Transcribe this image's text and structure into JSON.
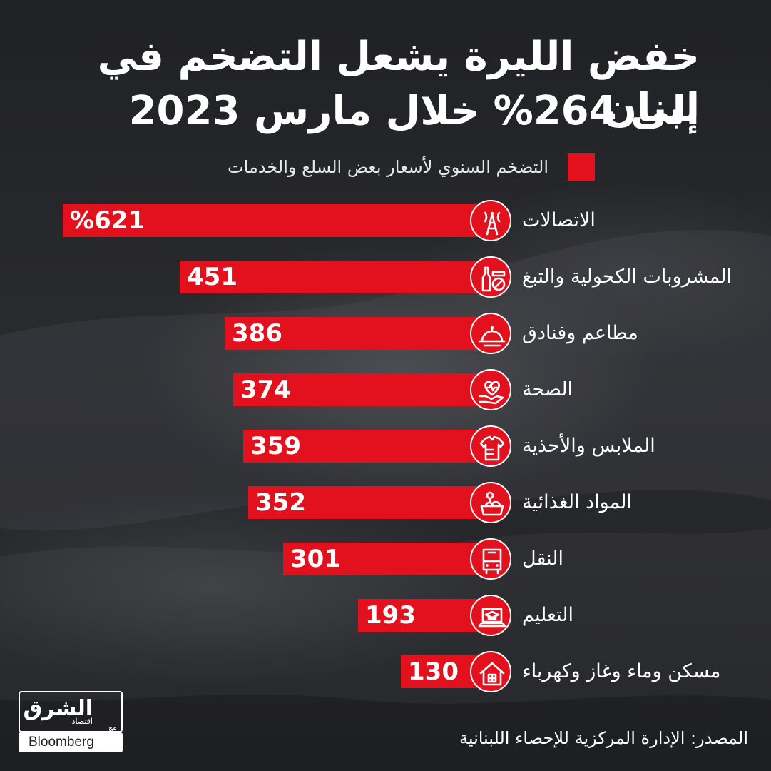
{
  "header": {
    "title_line1": "خفض الليرة يشعل التضخم في لبنان",
    "title_line2": "إلى 264% خلال مارس 2023"
  },
  "legend": {
    "label": "التضخم السنوي لأسعار بعض السلع والخدمات",
    "color": "#e3101d"
  },
  "chart_data": {
    "type": "bar",
    "orientation": "horizontal",
    "title": "خفض الليرة يشعل التضخم في لبنان إلى 264% خلال مارس 2023",
    "series": [
      {
        "name": "التضخم السنوي لأسعار بعض السلع والخدمات",
        "color": "#e3101d"
      }
    ],
    "categories": [
      "الاتصالات",
      "المشروبات الكحولية والتبغ",
      "مطاعم وفنادق",
      "الصحة",
      "الملابس والأحذية",
      "المواد الغذائية",
      "النقل",
      "التعليم",
      "مسكن وماء وغاز وكهرباء"
    ],
    "values": [
      621,
      451,
      386,
      374,
      359,
      352,
      301,
      193,
      130
    ],
    "value_labels": [
      "%621",
      "451",
      "386",
      "374",
      "359",
      "352",
      "301",
      "193",
      "130"
    ],
    "icons": [
      "telecom-tower-icon",
      "bottle-no-smoking-icon",
      "cloche-icon",
      "heart-hand-icon",
      "clothes-icon",
      "groceries-icon",
      "bus-icon",
      "laptop-graduation-icon",
      "house-icon"
    ],
    "xlim": [
      0,
      621
    ]
  },
  "source": "المصدر: الإدارة المركزية للإحصاء اللبنانية",
  "logo": {
    "name": "الشرق",
    "sub": "اقتصاد",
    "with": "مع",
    "partner": "Bloomberg"
  }
}
